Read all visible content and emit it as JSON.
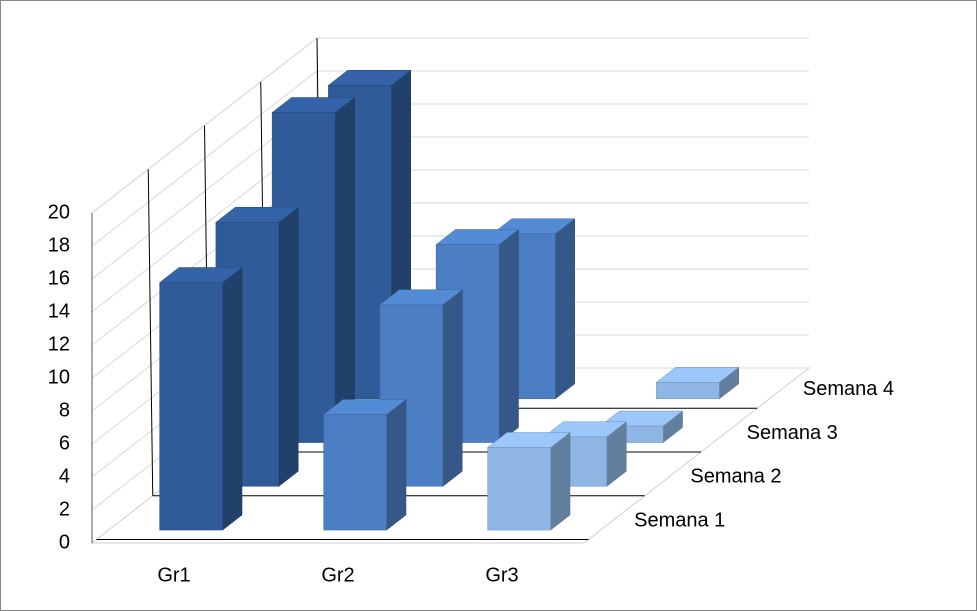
{
  "chart_data": {
    "type": "bar3d",
    "categories": [
      "Gr1",
      "Gr2",
      "Gr3"
    ],
    "colors": [
      "#2f5b98",
      "#4b7ec2",
      "#8eb5e3"
    ],
    "series": [
      {
        "name": "Semana 1",
        "values": [
          15,
          7,
          5
        ]
      },
      {
        "name": "Semana 2",
        "values": [
          16,
          11,
          3
        ]
      },
      {
        "name": "Semana 3",
        "values": [
          20,
          12,
          1
        ]
      },
      {
        "name": "Semana 4",
        "values": [
          19,
          10,
          1
        ]
      }
    ],
    "ylim": [
      0,
      20
    ],
    "yticks": [
      0,
      2,
      4,
      6,
      8,
      10,
      12,
      14,
      16,
      18,
      20
    ],
    "grid": true
  }
}
